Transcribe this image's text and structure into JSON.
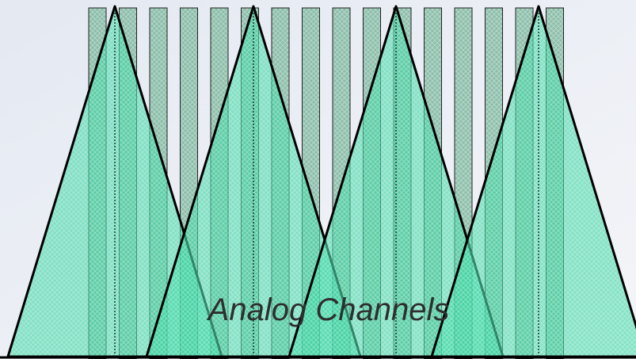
{
  "labels": {
    "analog": "Analog Channels"
  }
}
